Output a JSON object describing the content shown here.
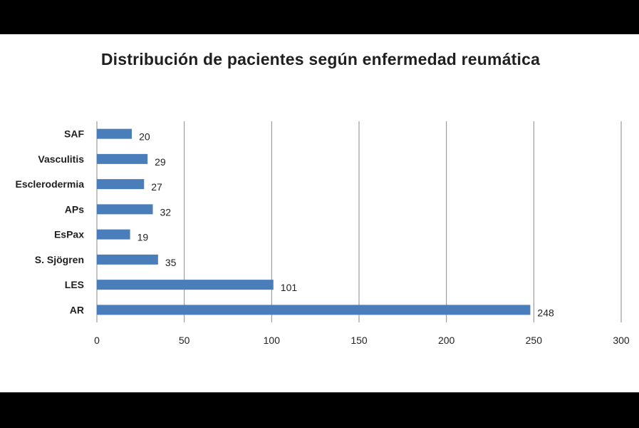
{
  "chart_data": {
    "type": "bar",
    "orientation": "horizontal",
    "title": "Distribución  de pacientes según enfermedad reumática",
    "categories": [
      "SAF",
      "Vasculitis",
      "Esclerodermia",
      "APs",
      "EsPax",
      "S. Sjögren",
      "LES",
      "AR"
    ],
    "values": [
      20,
      29,
      27,
      32,
      19,
      35,
      101,
      248
    ],
    "data_labels": [
      "20",
      "29",
      "27",
      "32",
      "19",
      "35",
      "101",
      "248"
    ],
    "xlim": [
      0,
      300
    ],
    "x_ticks": [
      "0",
      "50",
      "100",
      "150",
      "200",
      "250",
      "300"
    ],
    "x_tick_values": [
      0,
      50,
      100,
      150,
      200,
      250,
      300
    ],
    "grid": true,
    "legend": "none",
    "bar_color": "#4a7ebb",
    "xlabel": "",
    "ylabel": ""
  }
}
